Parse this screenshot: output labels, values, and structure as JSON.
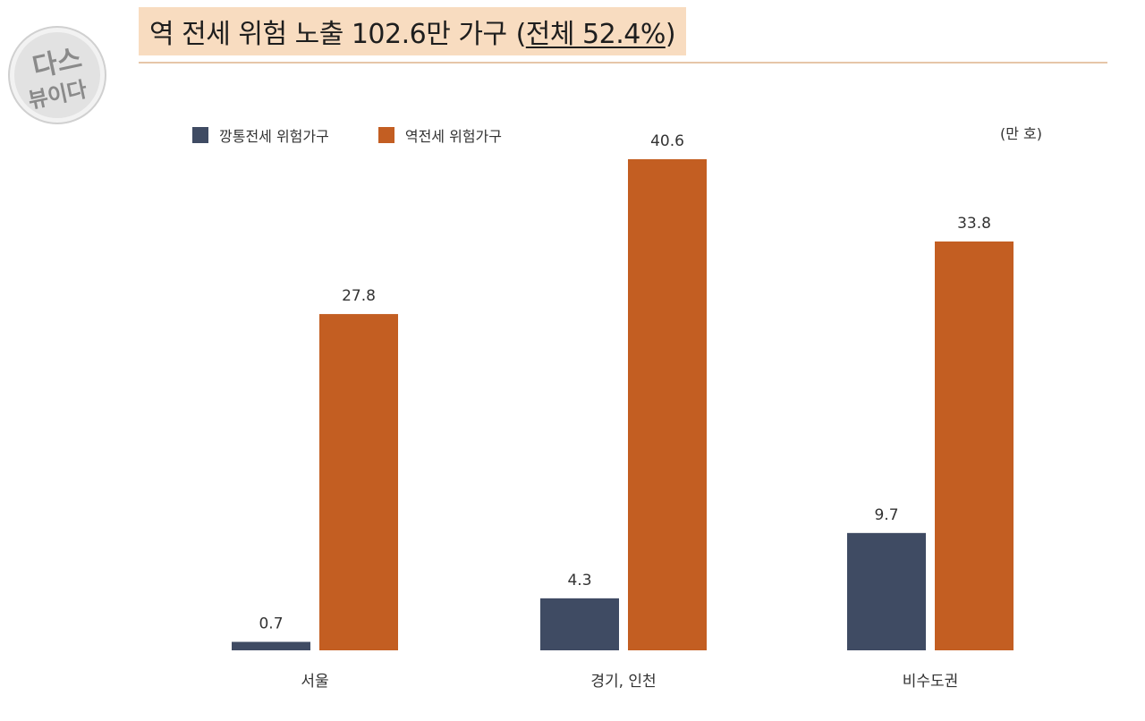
{
  "header": {
    "title_main": "역 전세 위험 노출 102.6만 가구",
    "title_paren_open": "(",
    "title_paren_inner": "전체 52.4%",
    "title_paren_close": ")"
  },
  "logo": {
    "text_top": "다스",
    "text_bottom": "뷰이다"
  },
  "colors": {
    "title_band": "#f8dcc0",
    "divider": "#e6c6a8",
    "series_dark": "#3f4b63",
    "series_orange": "#c35e22"
  },
  "chart_data": {
    "type": "bar",
    "title": "역 전세 위험 노출 102.6만 가구 (전체 52.4%)",
    "unit_label": "(만 호)",
    "categories": [
      "서울",
      "경기, 인천",
      "비수도권"
    ],
    "series": [
      {
        "name": "깡통전세 위험가구",
        "color": "#3f4b63",
        "values": [
          0.7,
          4.3,
          9.7
        ]
      },
      {
        "name": "역전세 위험가구",
        "color": "#c35e22",
        "values": [
          27.8,
          40.6,
          33.8
        ]
      }
    ],
    "value_labels": [
      [
        "0.7",
        "4.3",
        "9.7"
      ],
      [
        "27.8",
        "40.6",
        "33.8"
      ]
    ],
    "ylim": [
      0,
      40.6
    ],
    "grid": false,
    "legend": "top-left"
  }
}
